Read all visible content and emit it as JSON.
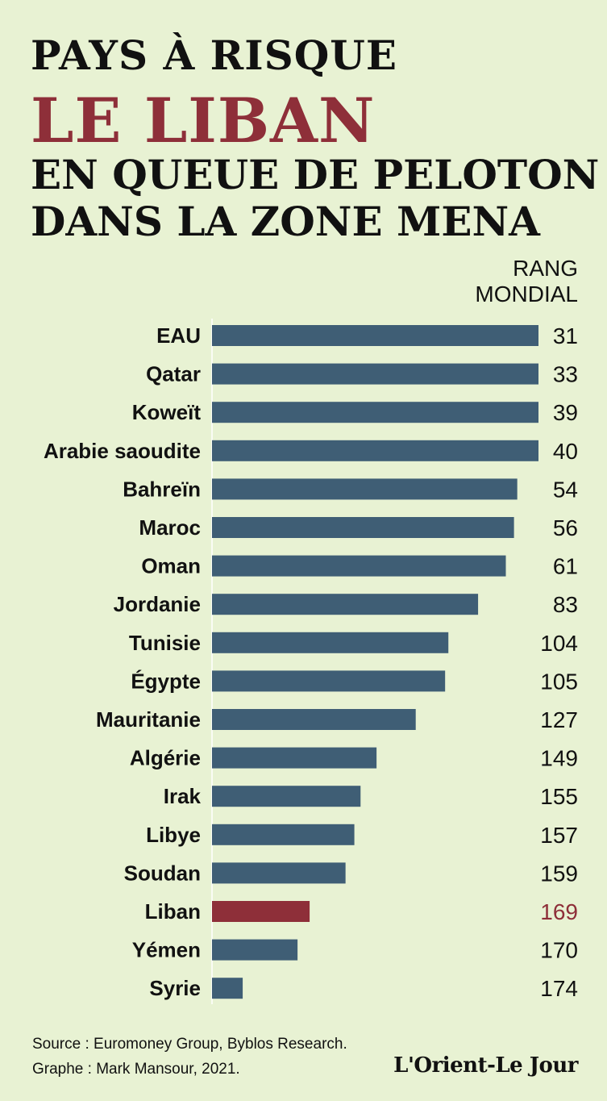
{
  "header": {
    "line1": "PAYS À RISQUE",
    "line2": "LE LIBAN",
    "line3": "EN QUEUE DE PELOTON",
    "line4": "DANS LA ZONE MENA"
  },
  "rank_header": {
    "line1": "RANG",
    "line2": "MONDIAL"
  },
  "chart_data": {
    "type": "bar",
    "orientation": "horizontal",
    "categories": [
      "EAU",
      "Qatar",
      "Koweït",
      "Arabie saoudite",
      "Bahreïn",
      "Maroc",
      "Oman",
      "Jordanie",
      "Tunisie",
      "Égypte",
      "Mauritanie",
      "Algérie",
      "Irak",
      "Libye",
      "Soudan",
      "Liban",
      "Yémen",
      "Syrie"
    ],
    "values": [
      31,
      33,
      39,
      40,
      54,
      56,
      61,
      83,
      104,
      105,
      127,
      149,
      155,
      157,
      159,
      169,
      170,
      174
    ],
    "bar_lengths_relative": [
      1.0,
      1.0,
      1.0,
      1.0,
      0.935,
      0.925,
      0.9,
      0.815,
      0.724,
      0.714,
      0.624,
      0.504,
      0.455,
      0.436,
      0.409,
      0.299,
      0.262,
      0.094
    ],
    "highlight": "Liban",
    "colors": {
      "bar": "#3f5e75",
      "highlight": "#8e2f39",
      "background": "#e8f2d3",
      "text": "#111111"
    }
  },
  "footer": {
    "source": "Source : Euromoney Group, Byblos Research.",
    "graph": "Graphe : Mark Mansour, 2021.",
    "logo": "L'Orient-Le Jour"
  }
}
